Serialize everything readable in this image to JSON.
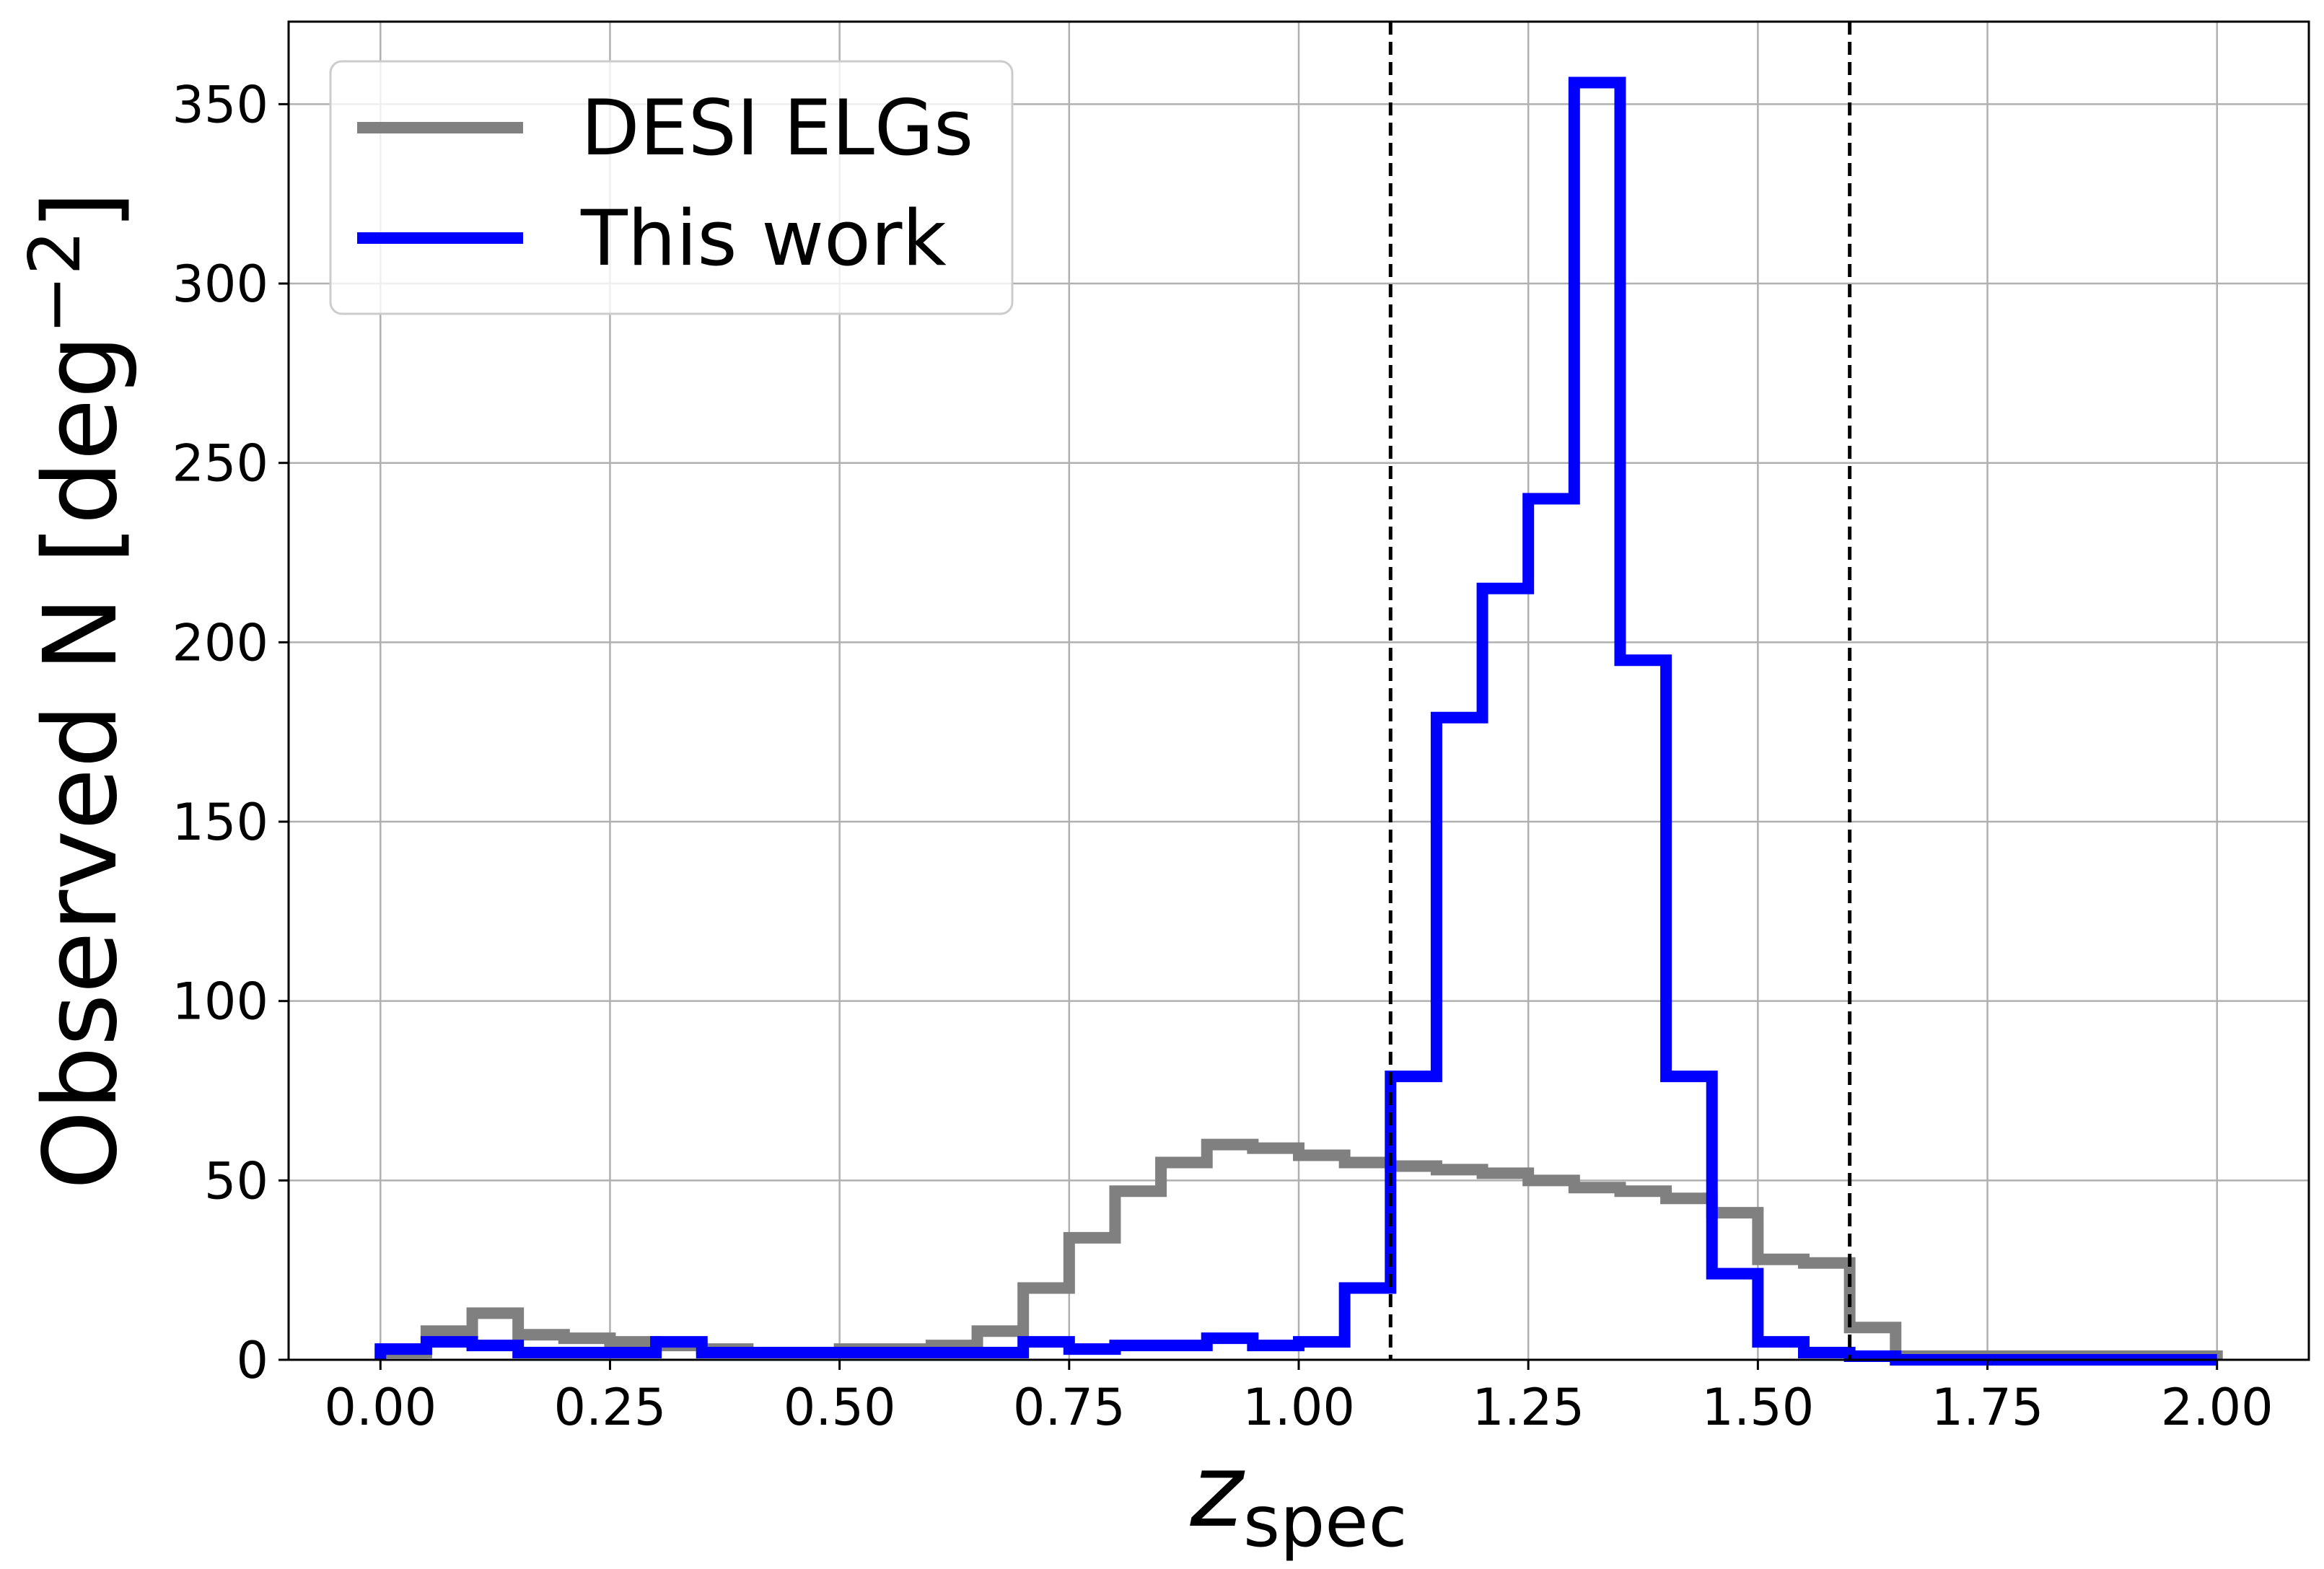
{
  "chart_data": {
    "type": "histogram-step",
    "xlabel_main": "z",
    "xlabel_sub": "spec",
    "ylabel_main": "Observed N [deg",
    "ylabel_sup": "−2",
    "ylabel_end": "]",
    "xlim": [
      -0.1,
      2.1
    ],
    "ylim": [
      0,
      373
    ],
    "xticks": [
      0.0,
      0.25,
      0.5,
      0.75,
      1.0,
      1.25,
      1.5,
      1.75,
      2.0
    ],
    "xtick_labels": [
      "0.00",
      "0.25",
      "0.50",
      "0.75",
      "1.00",
      "1.25",
      "1.50",
      "1.75",
      "2.00"
    ],
    "yticks": [
      0,
      50,
      100,
      150,
      200,
      250,
      300,
      350
    ],
    "ytick_labels": [
      "0",
      "50",
      "100",
      "150",
      "200",
      "250",
      "300",
      "350"
    ],
    "grid": true,
    "legend_position": "upper-left",
    "bin_edges": [
      0.0,
      0.05,
      0.1,
      0.15,
      0.2,
      0.25,
      0.3,
      0.35,
      0.4,
      0.45,
      0.5,
      0.55,
      0.6,
      0.65,
      0.7,
      0.75,
      0.8,
      0.85,
      0.9,
      0.95,
      1.0,
      1.05,
      1.1,
      1.15,
      1.2,
      1.25,
      1.3,
      1.35,
      1.4,
      1.45,
      1.5,
      1.55,
      1.6,
      1.65,
      1.7,
      1.75,
      1.8,
      1.85,
      1.9,
      1.95,
      2.0
    ],
    "series": [
      {
        "name": "DESI ELGs",
        "color": "#808080",
        "values": [
          2,
          8,
          13,
          7,
          6,
          5,
          4,
          3,
          2,
          2,
          3,
          3,
          4,
          8,
          20,
          34,
          47,
          55,
          60,
          59,
          57,
          55,
          54,
          53,
          52,
          50,
          48,
          47,
          45,
          41,
          28,
          27,
          9,
          1,
          1,
          1,
          1,
          1,
          1,
          1
        ]
      },
      {
        "name": "This work",
        "color": "#0000ff",
        "values": [
          3,
          5,
          4,
          2,
          2,
          2,
          5,
          2,
          2,
          2,
          2,
          2,
          2,
          2,
          5,
          3,
          4,
          4,
          6,
          4,
          5,
          20,
          79,
          179,
          215,
          240,
          356,
          195,
          79,
          24,
          5,
          2,
          1,
          0,
          0,
          0,
          0,
          0,
          0,
          0
        ]
      }
    ],
    "vlines": [
      {
        "x": 1.1,
        "style": "dashed",
        "color": "#000000"
      },
      {
        "x": 1.6,
        "style": "dashed",
        "color": "#000000"
      }
    ]
  }
}
